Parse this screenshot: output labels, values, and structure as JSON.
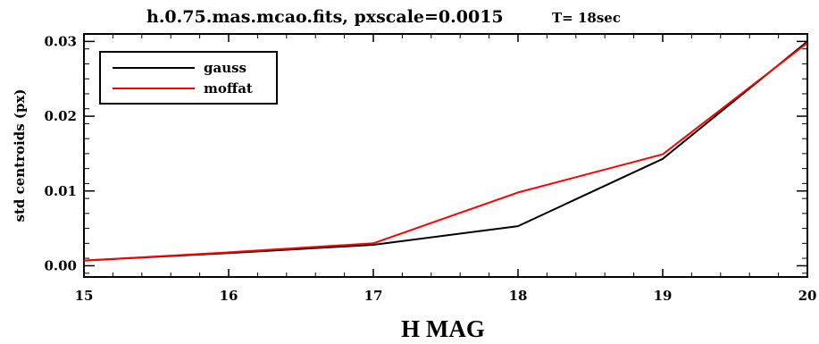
{
  "chart_data": {
    "type": "line",
    "title": "h.0.75.mas.mcao.fits,  pxscale=0.0015",
    "subtitle": "T= 18sec",
    "xlabel": "H MAG",
    "ylabel": "std centroids (px)",
    "x": [
      15,
      16,
      17,
      18,
      19,
      20
    ],
    "xlim": [
      15,
      20
    ],
    "ylim": [
      -0.0015,
      0.031
    ],
    "x_ticks": [
      15,
      16,
      17,
      18,
      19,
      20
    ],
    "x_tick_labels": [
      "15",
      "16",
      "17",
      "18",
      "19",
      "20"
    ],
    "y_ticks": [
      0.0,
      0.01,
      0.02,
      0.03
    ],
    "y_tick_labels": [
      "0.00",
      "0.01",
      "0.02",
      "0.03"
    ],
    "grid": false,
    "legend_position": "top-left",
    "series": [
      {
        "name": "gauss",
        "color": "#000000",
        "values": [
          0.0007,
          0.0017,
          0.0028,
          0.0053,
          0.0143,
          0.03
        ]
      },
      {
        "name": "moffat",
        "color": "#ff0000",
        "values": [
          0.0007,
          0.0018,
          0.003,
          0.0098,
          0.0149,
          0.0298
        ]
      }
    ]
  }
}
